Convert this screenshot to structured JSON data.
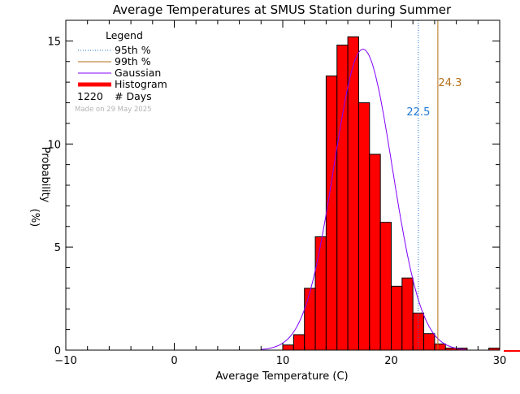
{
  "chart_data": {
    "type": "bar",
    "title": "Average Temperatures at SMUS Station during Summer",
    "xlabel": "Average Temperature (C)",
    "ylabel": "Probability",
    "ylabel_unit": "(%)",
    "xlim": [
      -10,
      30
    ],
    "ylim": [
      0,
      16
    ],
    "x_ticks": [
      -10,
      0,
      10,
      20,
      30
    ],
    "y_ticks": [
      0,
      5,
      10,
      15
    ],
    "bin_width": 1,
    "histogram": {
      "name": "Histogram",
      "color": "#ff0000",
      "bins": [
        {
          "x0": 9,
          "x1": 10,
          "value": 0.0
        },
        {
          "x0": 10,
          "x1": 11,
          "value": 0.25
        },
        {
          "x0": 11,
          "x1": 12,
          "value": 0.75
        },
        {
          "x0": 12,
          "x1": 13,
          "value": 3.0
        },
        {
          "x0": 13,
          "x1": 14,
          "value": 5.5
        },
        {
          "x0": 14,
          "x1": 15,
          "value": 13.3
        },
        {
          "x0": 15,
          "x1": 16,
          "value": 14.8
        },
        {
          "x0": 16,
          "x1": 17,
          "value": 15.2
        },
        {
          "x0": 17,
          "x1": 18,
          "value": 12.0
        },
        {
          "x0": 18,
          "x1": 19,
          "value": 9.5
        },
        {
          "x0": 19,
          "x1": 20,
          "value": 6.2
        },
        {
          "x0": 20,
          "x1": 21,
          "value": 3.1
        },
        {
          "x0": 21,
          "x1": 22,
          "value": 3.5
        },
        {
          "x0": 22,
          "x1": 23,
          "value": 1.8
        },
        {
          "x0": 23,
          "x1": 24,
          "value": 0.8
        },
        {
          "x0": 24,
          "x1": 25,
          "value": 0.3
        },
        {
          "x0": 25,
          "x1": 26,
          "value": 0.1
        },
        {
          "x0": 26,
          "x1": 27,
          "value": 0.1
        },
        {
          "x0": 29,
          "x1": 30,
          "value": 0.1
        }
      ]
    },
    "gaussian": {
      "name": "Gaussian",
      "color": "#8000ff",
      "mean": 17.4,
      "sigma": 2.7,
      "peak": 14.6
    },
    "percentile_95": {
      "name": "95th %",
      "value": 22.5,
      "label": "22.5",
      "color": "#1e78d2"
    },
    "percentile_99": {
      "name": "99th %",
      "value": 24.3,
      "label": "24.3",
      "color": "#b46e14"
    },
    "legend": {
      "title": "Legend",
      "position": "top-left",
      "items": [
        "95th %",
        "99th %",
        "Gaussian",
        "Histogram"
      ],
      "days_count": "1220",
      "days_label": "# Days",
      "made_on": "Made on 29 May 2025"
    },
    "grid": false
  }
}
